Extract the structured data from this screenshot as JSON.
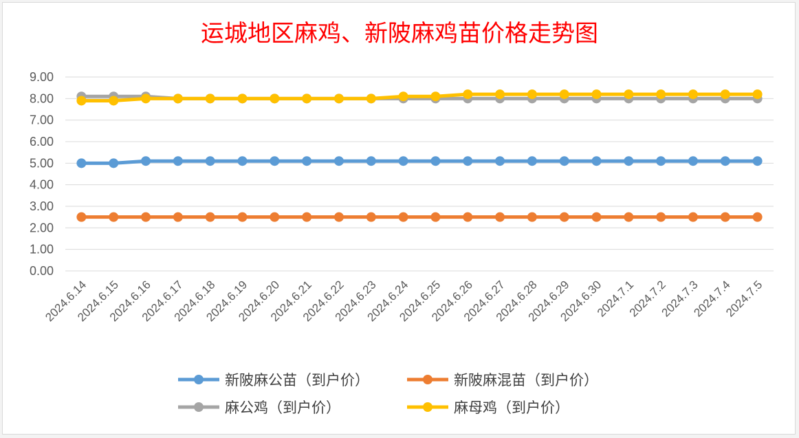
{
  "chart_data": {
    "type": "line",
    "title": "运城地区麻鸡、新陂麻鸡苗价格走势图",
    "xlabel": "",
    "ylabel": "",
    "ylim": [
      0,
      9
    ],
    "y_ticks": [
      "0.00",
      "1.00",
      "2.00",
      "3.00",
      "4.00",
      "5.00",
      "6.00",
      "7.00",
      "8.00",
      "9.00"
    ],
    "grid": true,
    "legend_position": "bottom",
    "categories": [
      "2024.6.14",
      "2024.6.15",
      "2024.6.16",
      "2024.6.17",
      "2024.6.18",
      "2024.6.19",
      "2024.6.20",
      "2024.6.21",
      "2024.6.22",
      "2024.6.23",
      "2024.6.24",
      "2024.6.25",
      "2024.6.26",
      "2024.6.27",
      "2024.6.28",
      "2024.6.29",
      "2024.6.30",
      "2024.7.1",
      "2024.7.2",
      "2024.7.3",
      "2024.7.4",
      "2024.7.5"
    ],
    "series": [
      {
        "name": "新陂麻公苗（到户价）",
        "color": "#5b9bd5",
        "values": [
          5.0,
          5.0,
          5.1,
          5.1,
          5.1,
          5.1,
          5.1,
          5.1,
          5.1,
          5.1,
          5.1,
          5.1,
          5.1,
          5.1,
          5.1,
          5.1,
          5.1,
          5.1,
          5.1,
          5.1,
          5.1,
          5.1
        ]
      },
      {
        "name": "新陂麻混苗（到户价）",
        "color": "#ed7d31",
        "values": [
          2.5,
          2.5,
          2.5,
          2.5,
          2.5,
          2.5,
          2.5,
          2.5,
          2.5,
          2.5,
          2.5,
          2.5,
          2.5,
          2.5,
          2.5,
          2.5,
          2.5,
          2.5,
          2.5,
          2.5,
          2.5,
          2.5
        ]
      },
      {
        "name": "麻公鸡（到户价）",
        "color": "#a5a5a5",
        "values": [
          8.1,
          8.1,
          8.1,
          8.0,
          8.0,
          8.0,
          8.0,
          8.0,
          8.0,
          8.0,
          8.0,
          8.0,
          8.0,
          8.0,
          8.0,
          8.0,
          8.0,
          8.0,
          8.0,
          8.0,
          8.0,
          8.0
        ]
      },
      {
        "name": "麻母鸡（到户价）",
        "color": "#ffc000",
        "values": [
          7.9,
          7.9,
          8.0,
          8.0,
          8.0,
          8.0,
          8.0,
          8.0,
          8.0,
          8.0,
          8.1,
          8.1,
          8.2,
          8.2,
          8.2,
          8.2,
          8.2,
          8.2,
          8.2,
          8.2,
          8.2,
          8.2
        ]
      }
    ]
  }
}
